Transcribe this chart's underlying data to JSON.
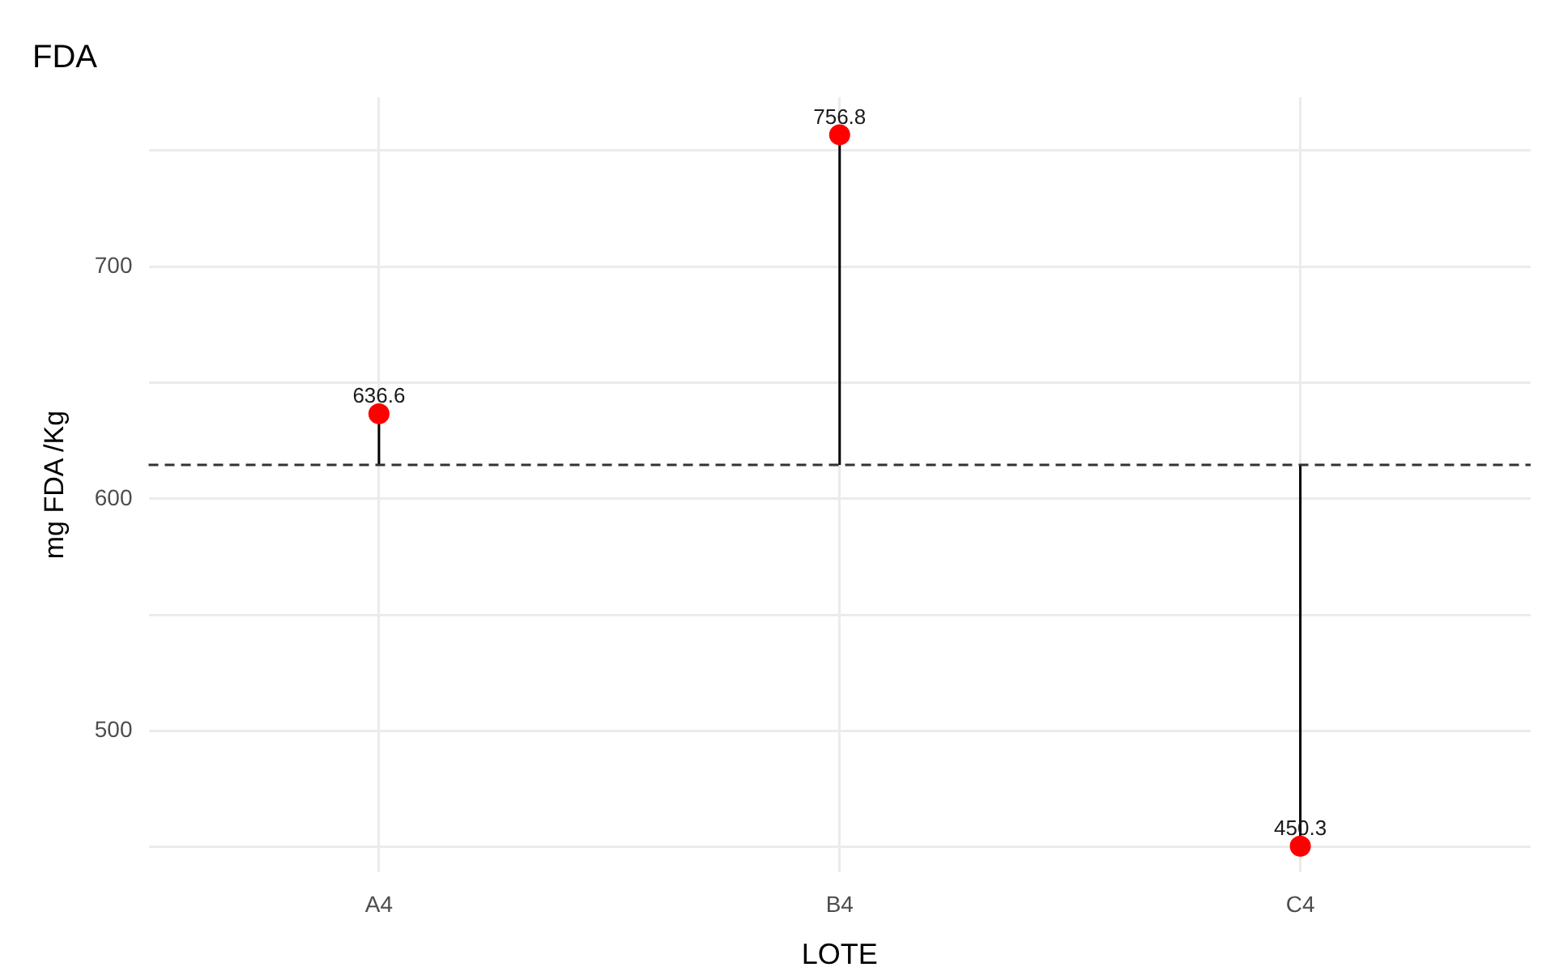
{
  "chart_data": {
    "type": "lollipop",
    "title": "FDA",
    "xlabel": "LOTE",
    "ylabel": "mg FDA /Kg",
    "categories": [
      "A4",
      "B4",
      "C4"
    ],
    "series": [
      {
        "color": "#ff0000",
        "values": [
          636.6,
          756.8,
          450.3
        ]
      }
    ],
    "ylim": [
      439,
      773
    ],
    "yticks": [
      {
        "value": 450,
        "label": null
      },
      500,
      {
        "value": 550,
        "label": null
      },
      600,
      {
        "value": 650,
        "label": null
      },
      700,
      {
        "value": 750,
        "label": null
      }
    ],
    "ref_lines": [
      {
        "axis": "y",
        "value": 614.6,
        "color": "#333333",
        "line_style": "dashed"
      }
    ],
    "data_labels": true,
    "grid": true,
    "legend": false,
    "marker": "circle"
  }
}
